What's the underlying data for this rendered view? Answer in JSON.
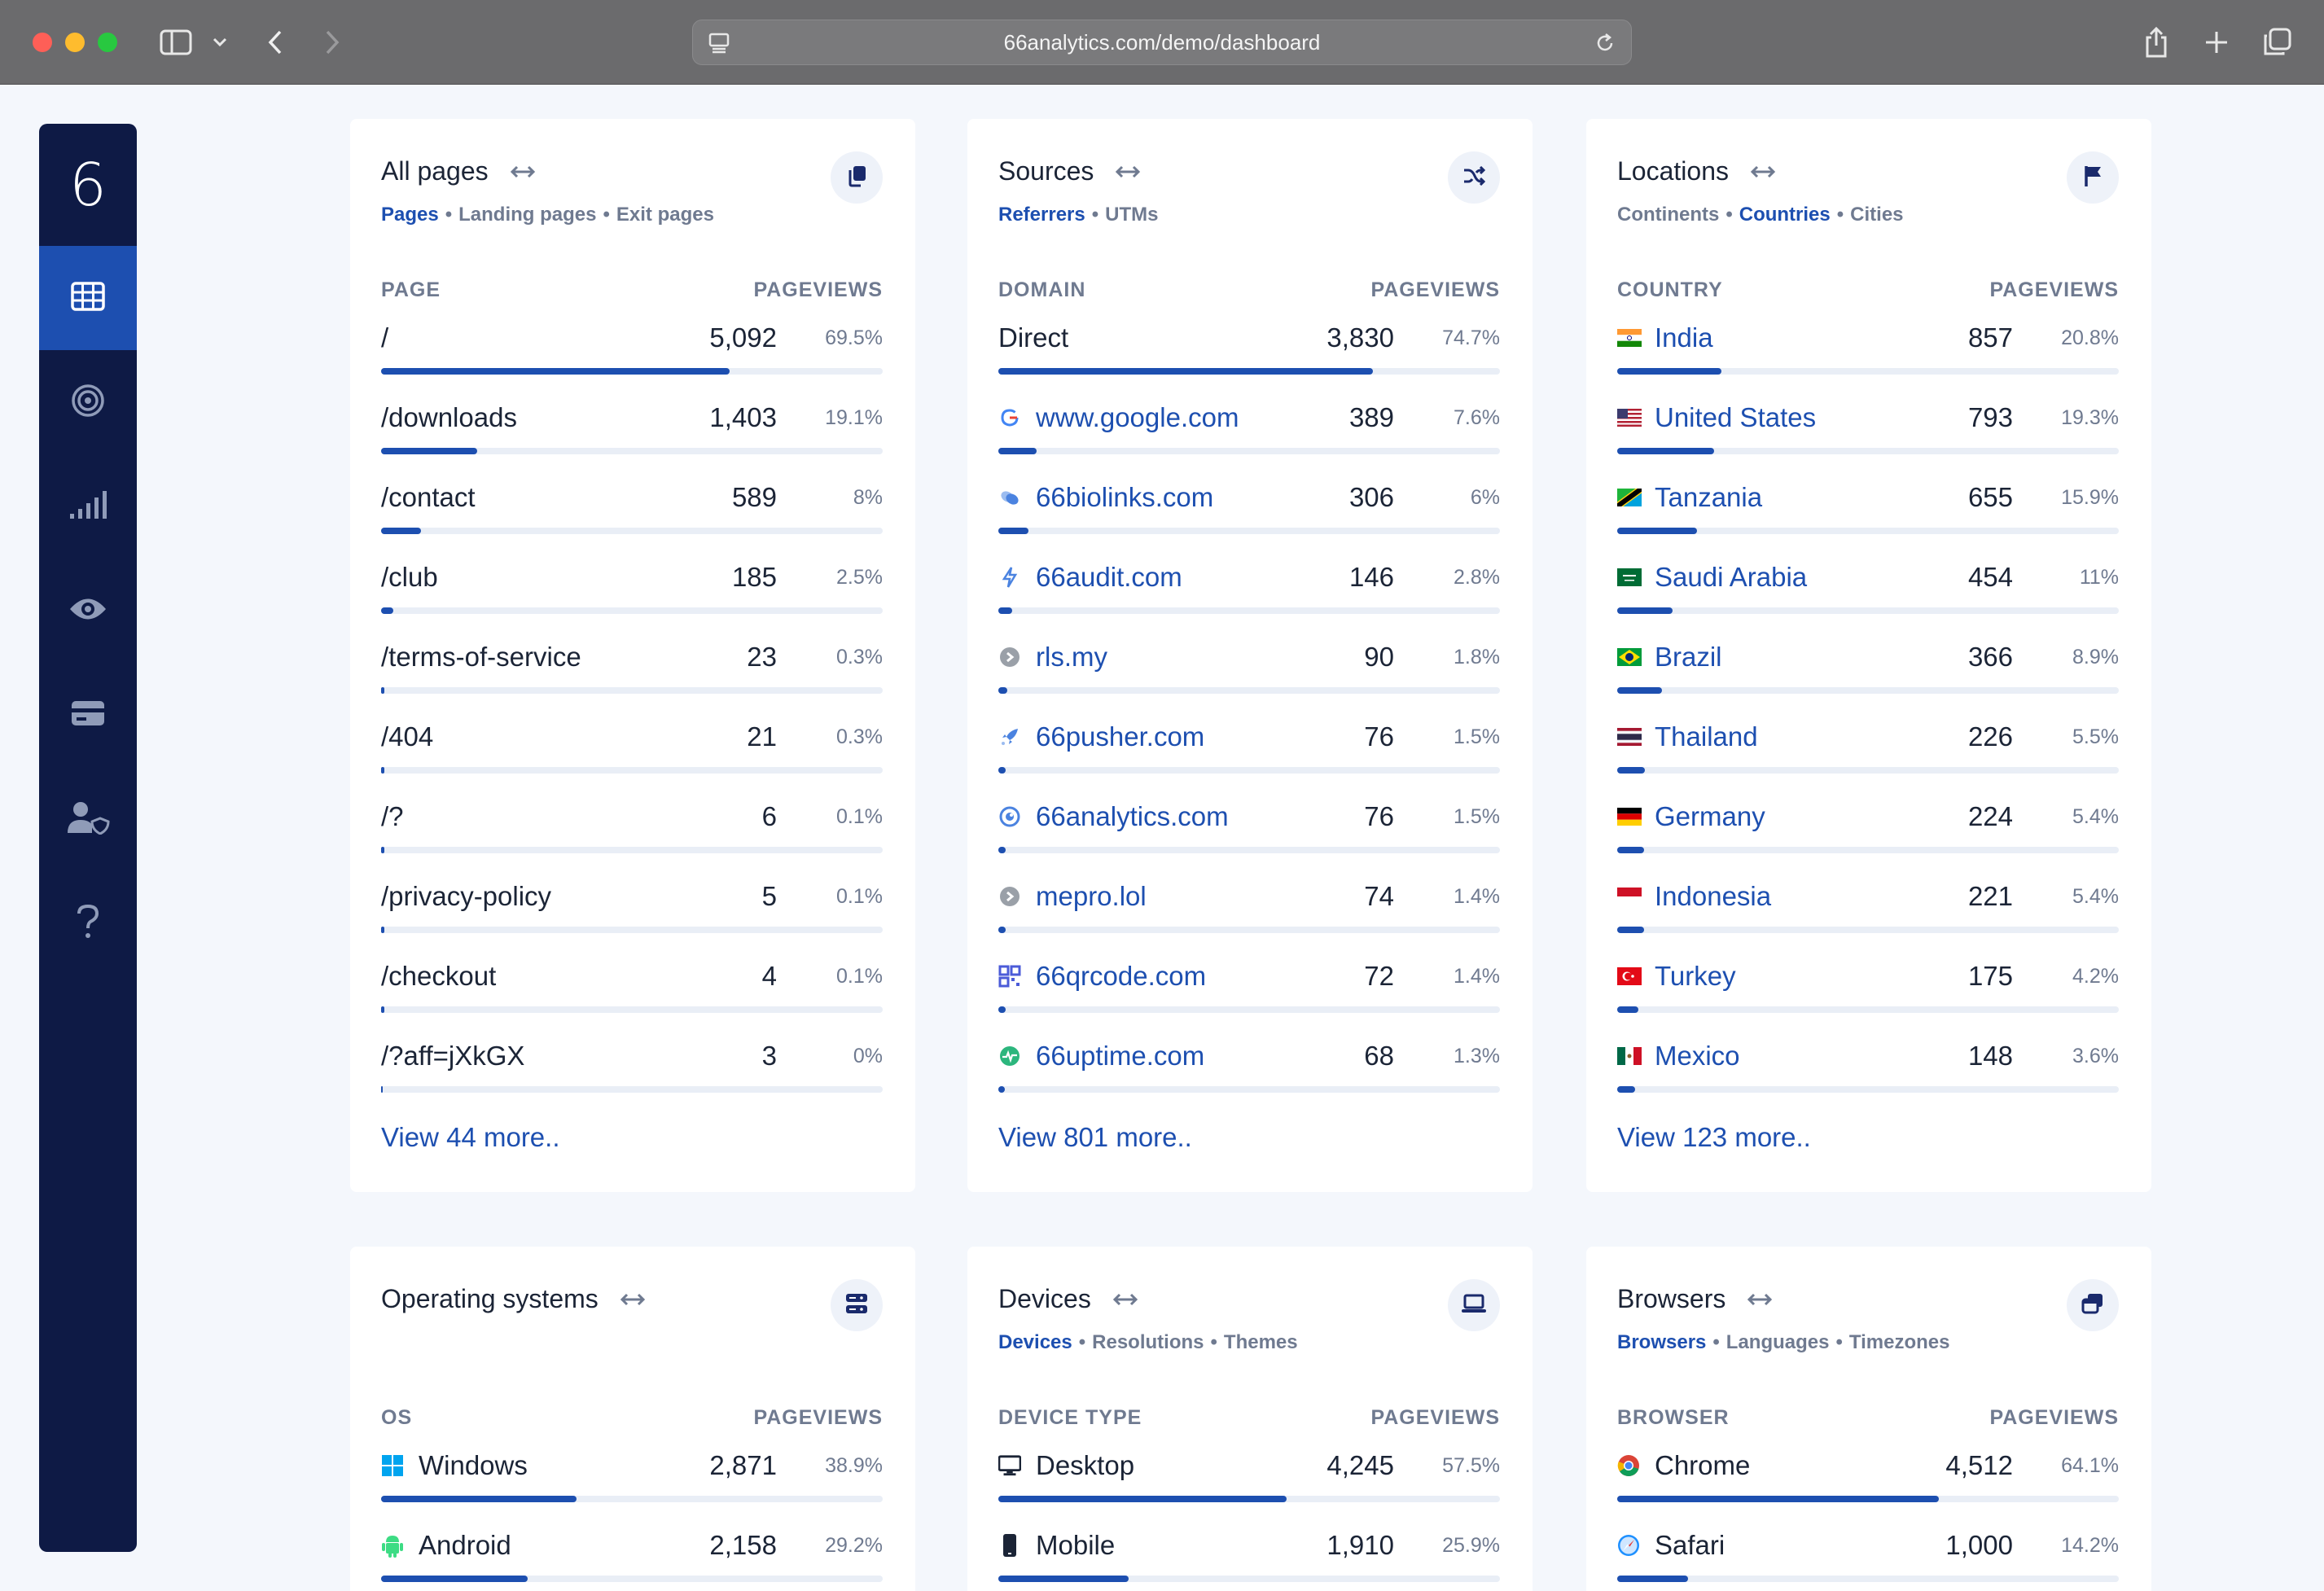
{
  "browser": {
    "url": "66analytics.com/demo/dashboard"
  },
  "sidebar": {
    "logo": "6"
  },
  "cards": [
    {
      "title": "All pages",
      "tabs": [
        "Pages",
        "Landing pages",
        "Exit pages"
      ],
      "active_tab": 0,
      "col1": "PAGE",
      "col2": "PAGEVIEWS",
      "rows": [
        {
          "label": "/",
          "value": "5,092",
          "pct": "69.5%",
          "fill": 0.695
        },
        {
          "label": "/downloads",
          "value": "1,403",
          "pct": "19.1%",
          "fill": 0.191
        },
        {
          "label": "/contact",
          "value": "589",
          "pct": "8%",
          "fill": 0.08
        },
        {
          "label": "/club",
          "value": "185",
          "pct": "2.5%",
          "fill": 0.025
        },
        {
          "label": "/terms-of-service",
          "value": "23",
          "pct": "0.3%",
          "fill": 0.003
        },
        {
          "label": "/404",
          "value": "21",
          "pct": "0.3%",
          "fill": 0.003
        },
        {
          "label": "/?",
          "value": "6",
          "pct": "0.1%",
          "fill": 0.001
        },
        {
          "label": "/privacy-policy",
          "value": "5",
          "pct": "0.1%",
          "fill": 0.001
        },
        {
          "label": "/checkout",
          "value": "4",
          "pct": "0.1%",
          "fill": 0.001
        },
        {
          "label": "/?aff=jXkGX",
          "value": "3",
          "pct": "0%",
          "fill": 0
        }
      ],
      "more": "View 44 more.."
    },
    {
      "title": "Sources",
      "tabs": [
        "Referrers",
        "UTMs"
      ],
      "active_tab": 0,
      "col1": "DOMAIN",
      "col2": "PAGEVIEWS",
      "rows": [
        {
          "label": "Direct",
          "value": "3,830",
          "pct": "74.7%",
          "fill": 0.747,
          "icon": ""
        },
        {
          "label": "www.google.com",
          "value": "389",
          "pct": "7.6%",
          "fill": 0.076,
          "icon": "google-icon"
        },
        {
          "label": "66biolinks.com",
          "value": "306",
          "pct": "6%",
          "fill": 0.06,
          "icon": "66biolinks-icon"
        },
        {
          "label": "66audit.com",
          "value": "146",
          "pct": "2.8%",
          "fill": 0.028,
          "icon": "66audit-icon"
        },
        {
          "label": "rls.my",
          "value": "90",
          "pct": "1.8%",
          "fill": 0.018,
          "icon": "rls-icon"
        },
        {
          "label": "66pusher.com",
          "value": "76",
          "pct": "1.5%",
          "fill": 0.015,
          "icon": "66pusher-icon"
        },
        {
          "label": "66analytics.com",
          "value": "76",
          "pct": "1.5%",
          "fill": 0.015,
          "icon": "66analytics-icon"
        },
        {
          "label": "mepro.lol",
          "value": "74",
          "pct": "1.4%",
          "fill": 0.014,
          "icon": "mepro-icon"
        },
        {
          "label": "66qrcode.com",
          "value": "72",
          "pct": "1.4%",
          "fill": 0.014,
          "icon": "66qrcode-icon"
        },
        {
          "label": "66uptime.com",
          "value": "68",
          "pct": "1.3%",
          "fill": 0.013,
          "icon": "66uptime-icon"
        }
      ],
      "more": "View 801 more.."
    },
    {
      "title": "Locations",
      "tabs": [
        "Continents",
        "Countries",
        "Cities"
      ],
      "active_tab": 1,
      "col1": "COUNTRY",
      "col2": "PAGEVIEWS",
      "rows": [
        {
          "label": "India",
          "value": "857",
          "pct": "20.8%",
          "fill": 0.208,
          "icon": "india-flag-icon"
        },
        {
          "label": "United States",
          "value": "793",
          "pct": "19.3%",
          "fill": 0.193,
          "icon": "us-flag-icon"
        },
        {
          "label": "Tanzania",
          "value": "655",
          "pct": "15.9%",
          "fill": 0.159,
          "icon": "tanzania-flag-icon"
        },
        {
          "label": "Saudi Arabia",
          "value": "454",
          "pct": "11%",
          "fill": 0.11,
          "icon": "saudi-flag-icon"
        },
        {
          "label": "Brazil",
          "value": "366",
          "pct": "8.9%",
          "fill": 0.089,
          "icon": "brazil-flag-icon"
        },
        {
          "label": "Thailand",
          "value": "226",
          "pct": "5.5%",
          "fill": 0.055,
          "icon": "thailand-flag-icon"
        },
        {
          "label": "Germany",
          "value": "224",
          "pct": "5.4%",
          "fill": 0.054,
          "icon": "germany-flag-icon"
        },
        {
          "label": "Indonesia",
          "value": "221",
          "pct": "5.4%",
          "fill": 0.054,
          "icon": "indonesia-flag-icon"
        },
        {
          "label": "Turkey",
          "value": "175",
          "pct": "4.2%",
          "fill": 0.042,
          "icon": "turkey-flag-icon"
        },
        {
          "label": "Mexico",
          "value": "148",
          "pct": "3.6%",
          "fill": 0.036,
          "icon": "mexico-flag-icon"
        }
      ],
      "more": "View 123 more.."
    },
    {
      "title": "Operating systems",
      "tabs": [],
      "col1": "OS",
      "col2": "PAGEVIEWS",
      "rows": [
        {
          "label": "Windows",
          "value": "2,871",
          "pct": "38.9%",
          "fill": 0.389,
          "icon": "windows-icon"
        },
        {
          "label": "Android",
          "value": "2,158",
          "pct": "29.2%",
          "fill": 0.292,
          "icon": "android-icon"
        }
      ]
    },
    {
      "title": "Devices",
      "tabs": [
        "Devices",
        "Resolutions",
        "Themes"
      ],
      "active_tab": 0,
      "col1": "DEVICE TYPE",
      "col2": "PAGEVIEWS",
      "rows": [
        {
          "label": "Desktop",
          "value": "4,245",
          "pct": "57.5%",
          "fill": 0.575,
          "icon": "desktop-icon"
        },
        {
          "label": "Mobile",
          "value": "1,910",
          "pct": "25.9%",
          "fill": 0.259,
          "icon": "mobile-icon"
        }
      ]
    },
    {
      "title": "Browsers",
      "tabs": [
        "Browsers",
        "Languages",
        "Timezones"
      ],
      "active_tab": 0,
      "col1": "BROWSER",
      "col2": "PAGEVIEWS",
      "rows": [
        {
          "label": "Chrome",
          "value": "4,512",
          "pct": "64.1%",
          "fill": 0.641,
          "icon": "chrome-icon"
        },
        {
          "label": "Safari",
          "value": "1,000",
          "pct": "14.2%",
          "fill": 0.142,
          "icon": "safari-icon"
        }
      ]
    }
  ],
  "colors": {
    "accent": "#1d4fb0",
    "sidebar": "#0e1a45",
    "background": "#f4f7fc"
  }
}
